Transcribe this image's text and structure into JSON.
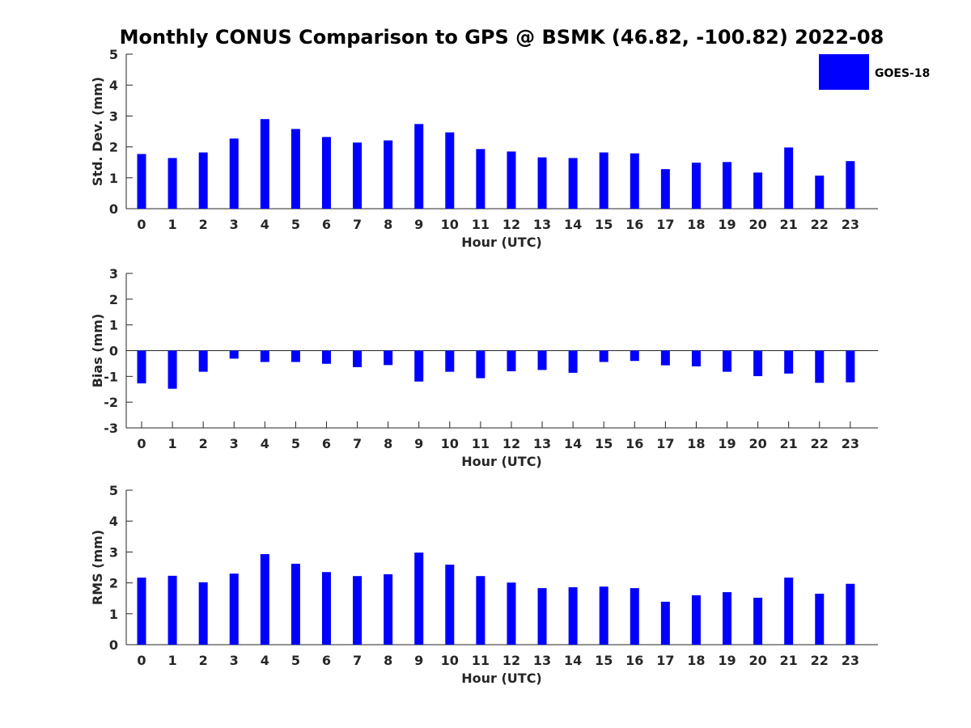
{
  "title": "Monthly CONUS Comparison to GPS @ BSMK (46.82, -100.82) 2022-08",
  "legend": {
    "label": "GOES-18",
    "color": "#0000ff"
  },
  "chart_data": [
    {
      "type": "bar",
      "xlabel": "Hour (UTC)",
      "ylabel": "Std. Dev. (mm)",
      "ylim": [
        0,
        5
      ],
      "yticks": [
        0,
        1,
        2,
        3,
        4,
        5
      ],
      "categories": [
        "0",
        "1",
        "2",
        "3",
        "4",
        "5",
        "6",
        "7",
        "8",
        "9",
        "10",
        "11",
        "12",
        "13",
        "14",
        "15",
        "16",
        "17",
        "18",
        "19",
        "20",
        "21",
        "22",
        "23"
      ],
      "series": [
        {
          "name": "GOES-18",
          "color": "#0000ff",
          "values": [
            1.77,
            1.64,
            1.82,
            2.27,
            2.9,
            2.58,
            2.32,
            2.14,
            2.21,
            2.74,
            2.47,
            1.93,
            1.85,
            1.66,
            1.64,
            1.82,
            1.79,
            1.28,
            1.49,
            1.51,
            1.17,
            1.98,
            1.07,
            1.54
          ]
        }
      ]
    },
    {
      "type": "bar",
      "xlabel": "Hour (UTC)",
      "ylabel": "Bias (mm)",
      "ylim": [
        -3,
        3
      ],
      "yticks": [
        -3,
        -2,
        -1,
        0,
        1,
        2,
        3
      ],
      "zero_line": true,
      "categories": [
        "0",
        "1",
        "2",
        "3",
        "4",
        "5",
        "6",
        "7",
        "8",
        "9",
        "10",
        "11",
        "12",
        "13",
        "14",
        "15",
        "16",
        "17",
        "18",
        "19",
        "20",
        "21",
        "22",
        "23"
      ],
      "series": [
        {
          "name": "GOES-18",
          "color": "#0000ff",
          "values": [
            -1.27,
            -1.48,
            -0.82,
            -0.31,
            -0.44,
            -0.44,
            -0.51,
            -0.64,
            -0.56,
            -1.2,
            -0.82,
            -1.07,
            -0.8,
            -0.75,
            -0.86,
            -0.44,
            -0.4,
            -0.57,
            -0.61,
            -0.82,
            -0.99,
            -0.89,
            -1.25,
            -1.23
          ]
        }
      ]
    },
    {
      "type": "bar",
      "xlabel": "Hour (UTC)",
      "ylabel": "RMS (mm)",
      "ylim": [
        0,
        5
      ],
      "yticks": [
        0,
        1,
        2,
        3,
        4,
        5
      ],
      "categories": [
        "0",
        "1",
        "2",
        "3",
        "4",
        "5",
        "6",
        "7",
        "8",
        "9",
        "10",
        "11",
        "12",
        "13",
        "14",
        "15",
        "16",
        "17",
        "18",
        "19",
        "20",
        "21",
        "22",
        "23"
      ],
      "series": [
        {
          "name": "GOES-18",
          "color": "#0000ff",
          "values": [
            2.17,
            2.23,
            2.02,
            2.3,
            2.93,
            2.62,
            2.35,
            2.22,
            2.28,
            2.98,
            2.59,
            2.22,
            2.01,
            1.83,
            1.86,
            1.88,
            1.83,
            1.39,
            1.6,
            1.7,
            1.52,
            2.17,
            1.65,
            1.97
          ]
        }
      ]
    }
  ]
}
